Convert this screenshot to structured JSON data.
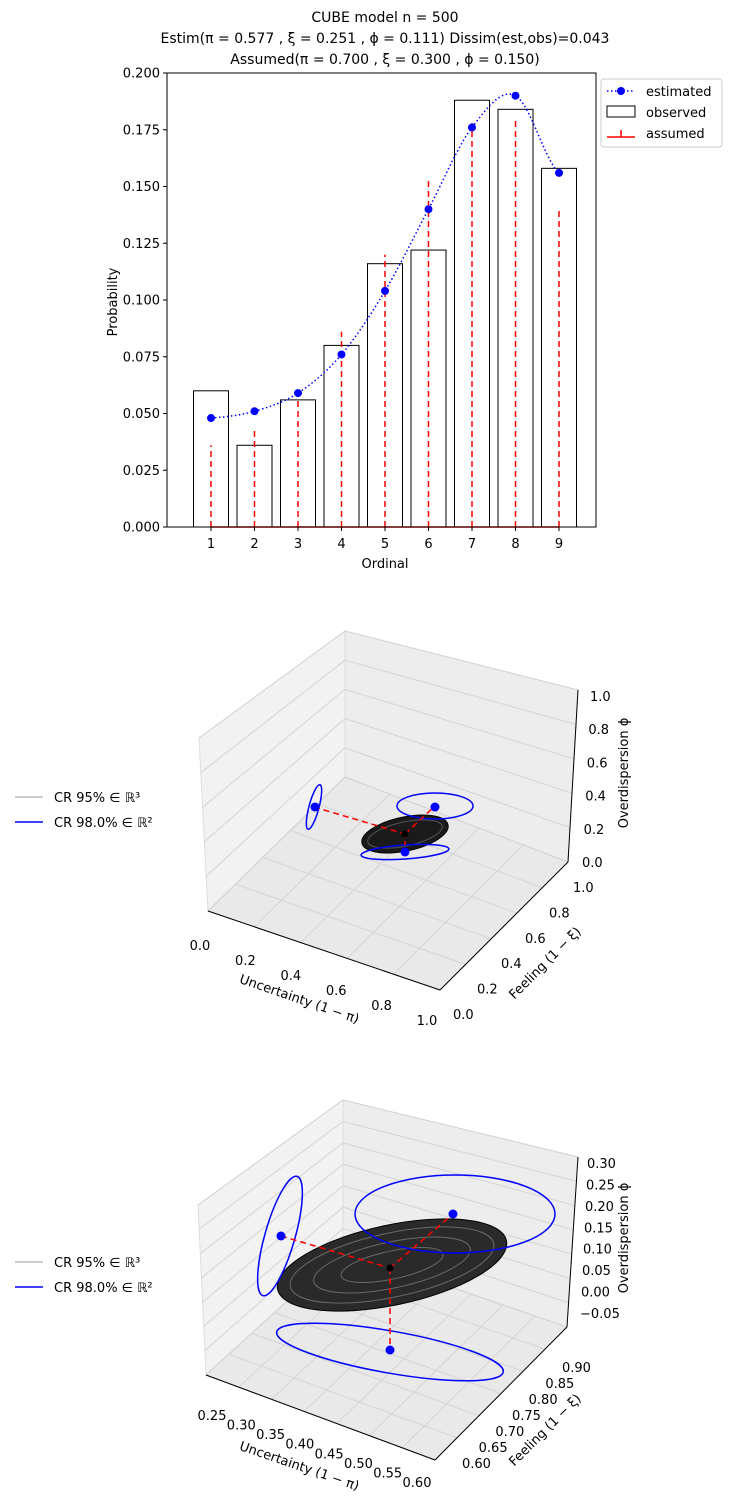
{
  "chart_data": [
    {
      "type": "bar",
      "title_lines": [
        "CUBE model     n = 500",
        "Estim(π = 0.577 , ξ = 0.251 , ϕ = 0.111)     Dissim(est,obs)=0.043",
        "Assumed(π = 0.700 , ξ = 0.300 , ϕ = 0.150)"
      ],
      "xlabel": "Ordinal",
      "ylabel": "Probability",
      "ylim": [
        0,
        0.2
      ],
      "yticks": [
        "0.000",
        "0.025",
        "0.050",
        "0.075",
        "0.100",
        "0.125",
        "0.150",
        "0.175",
        "0.200"
      ],
      "categories": [
        "1",
        "2",
        "3",
        "4",
        "5",
        "6",
        "7",
        "8",
        "9"
      ],
      "legend": [
        "estimated",
        "observed",
        "assumed"
      ],
      "legend_position": "outside top-right",
      "series": [
        {
          "name": "observed",
          "style": "bars",
          "values": [
            0.06,
            0.036,
            0.056,
            0.08,
            0.116,
            0.122,
            0.188,
            0.184,
            0.158
          ]
        },
        {
          "name": "estimated",
          "style": "dotted line with points",
          "values": [
            0.048,
            0.051,
            0.059,
            0.076,
            0.104,
            0.14,
            0.176,
            0.19,
            0.156
          ]
        },
        {
          "name": "assumed",
          "style": "dashed stems",
          "values": [
            0.036,
            0.044,
            0.061,
            0.086,
            0.12,
            0.153,
            0.178,
            0.179,
            0.14
          ]
        }
      ]
    },
    {
      "type": "3d-scatter",
      "xlabel": "Uncertainty (1 − π)",
      "ylabel": "Feeling (1 − ξ)",
      "zlabel": "Overdispersion ϕ",
      "xticks": [
        "0.0",
        "0.2",
        "0.4",
        "0.6",
        "0.8",
        "1.0"
      ],
      "yticks": [
        "0.0",
        "0.2",
        "0.4",
        "0.6",
        "0.8",
        "1.0"
      ],
      "zticks": [
        "0.0",
        "0.2",
        "0.4",
        "0.6",
        "0.8",
        "1.0"
      ],
      "xlim": [
        0,
        1
      ],
      "ylim": [
        0,
        1
      ],
      "zlim": [
        0,
        1
      ],
      "legend": [
        "CR 95% ∈ ℝ³",
        "CR 98.0% ∈ ℝ²"
      ],
      "legend_position": "outside left"
    },
    {
      "type": "3d-scatter",
      "xlabel": "Uncertainty (1 − π)",
      "ylabel": "Feeling (1 − ξ)",
      "zlabel": "Overdispersion ϕ",
      "xticks": [
        "0.25",
        "0.30",
        "0.35",
        "0.40",
        "0.45",
        "0.50",
        "0.55",
        "0.60"
      ],
      "yticks": [
        "0.60",
        "0.65",
        "0.70",
        "0.75",
        "0.80",
        "0.85",
        "0.90"
      ],
      "zticks": [
        "−0.05",
        "0.00",
        "0.05",
        "0.10",
        "0.15",
        "0.20",
        "0.25",
        "0.30"
      ],
      "legend": [
        "CR 95% ∈ ℝ³",
        "CR 98.0% ∈ ℝ²"
      ],
      "legend_position": "outside left"
    }
  ],
  "colors": {
    "estimated": "#0000ff",
    "observed_edge": "#000000",
    "assumed": "#ff0000",
    "cr3": "#bbbbbb",
    "cr2": "#0000ff",
    "grid": "#d9d9d9",
    "pane": "#f2f2f2"
  }
}
